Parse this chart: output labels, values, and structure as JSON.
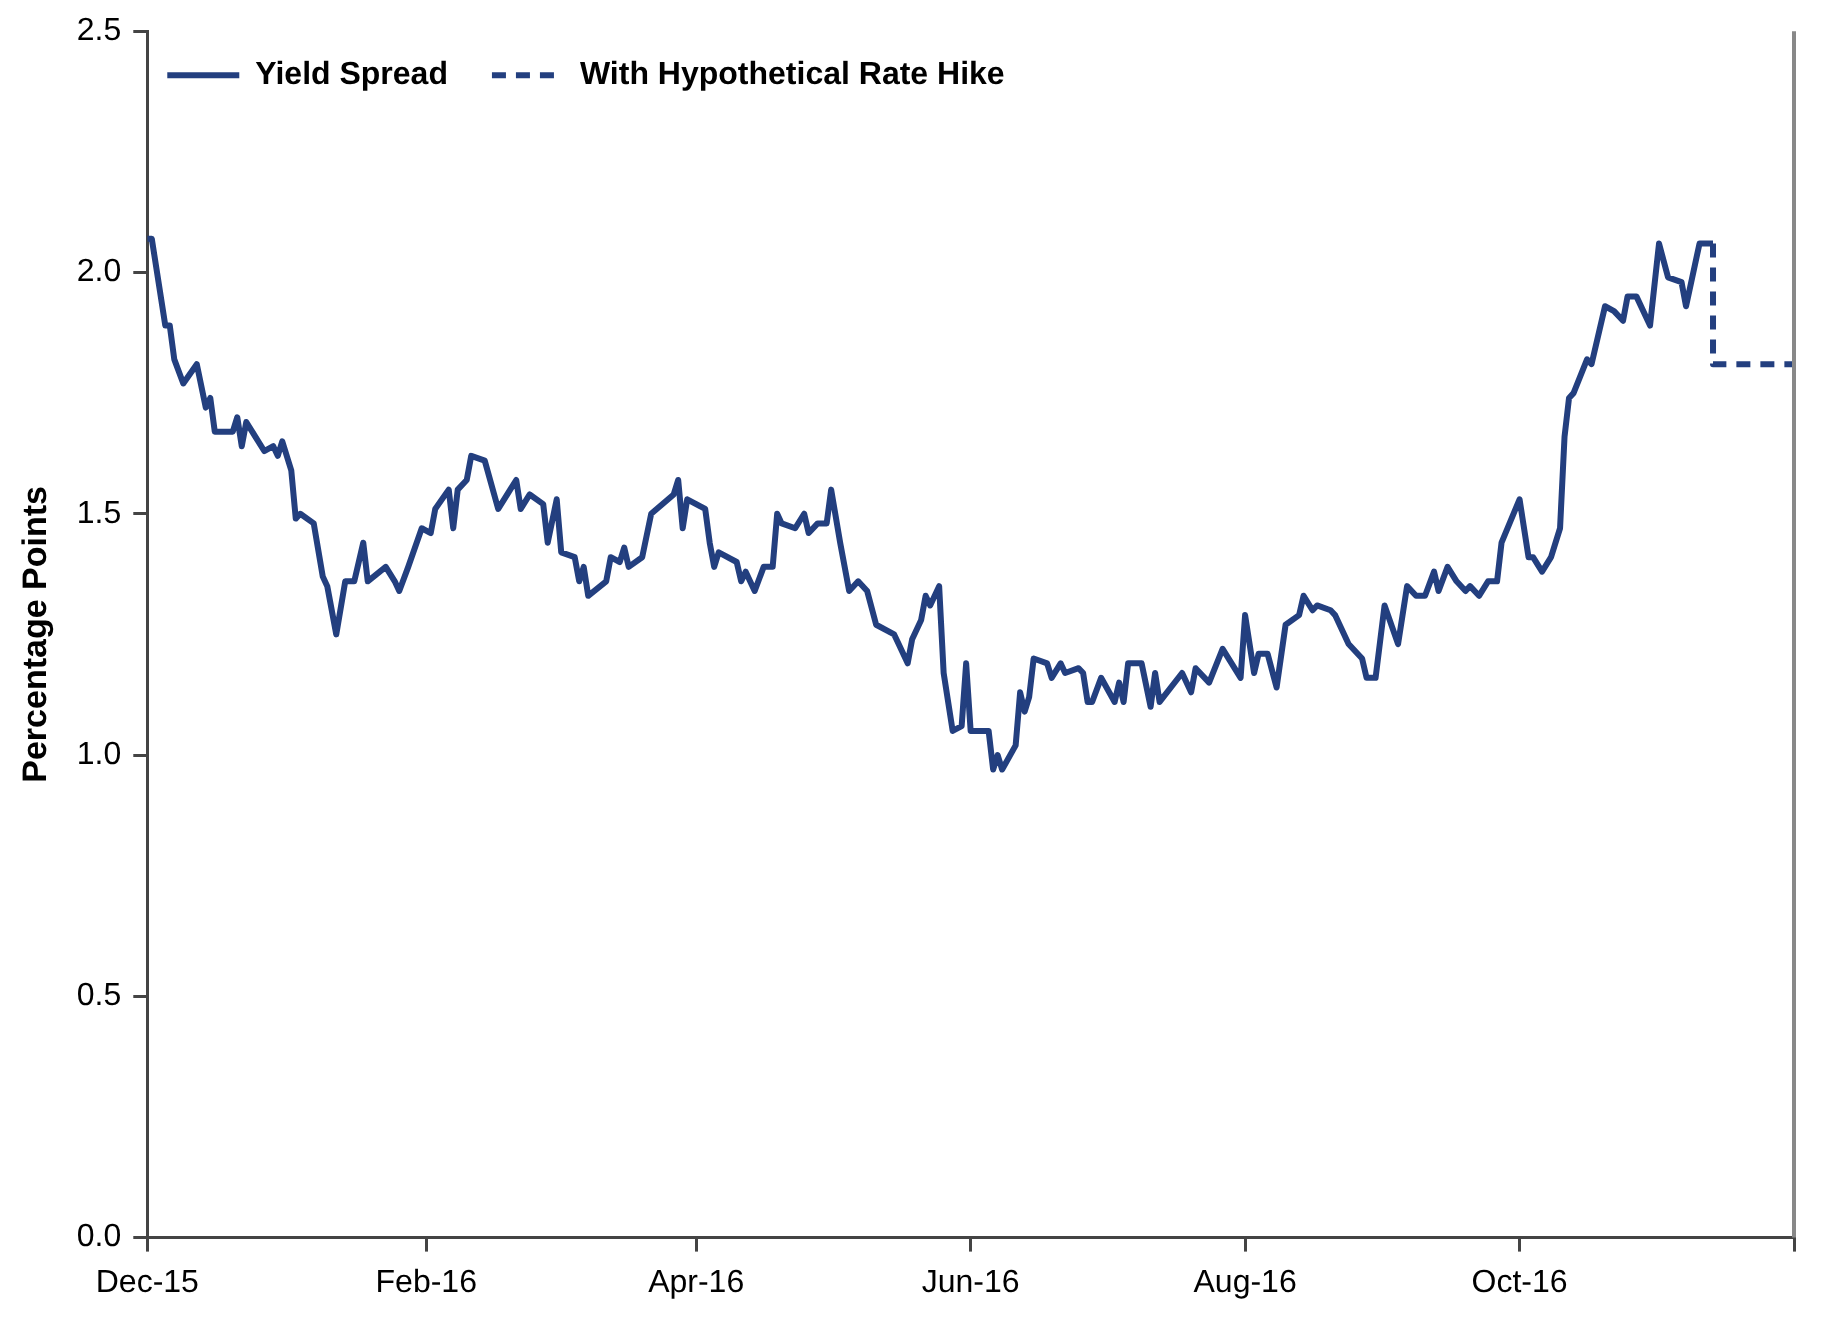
{
  "chart_data": {
    "type": "line",
    "ylabel": "Percentage Points",
    "legend": "top left",
    "grid": false,
    "marker": "none",
    "xlim": [
      "2015-12-01",
      "2016-12-01"
    ],
    "xticks": [
      {
        "value": "2015-12-01",
        "label": "Dec-15"
      },
      {
        "value": "2016-02-01",
        "label": "Feb-16"
      },
      {
        "value": "2016-04-01",
        "label": "Apr-16"
      },
      {
        "value": "2016-06-01",
        "label": "Jun-16"
      },
      {
        "value": "2016-08-01",
        "label": "Aug-16"
      },
      {
        "value": "2016-10-01",
        "label": "Oct-16"
      },
      {
        "value": "2016-12-01",
        "label": null
      }
    ],
    "ylim": [
      0,
      2.5
    ],
    "yticks": [
      {
        "value": 0,
        "label": "0.0"
      },
      {
        "value": 0.5,
        "label": "0.5"
      },
      {
        "value": 1,
        "label": "1.0"
      },
      {
        "value": 1.5,
        "label": "1.5"
      },
      {
        "value": 2,
        "label": "2.0"
      },
      {
        "value": 2.5,
        "label": "2.5"
      }
    ],
    "series": [
      {
        "name": "Yield Spread",
        "color": "#233f7f",
        "line_style": "solid",
        "x": [
          "2015-12-01",
          "2015-12-02",
          "2015-12-05",
          "2015-12-06",
          "2015-12-07",
          "2015-12-09",
          "2015-12-12",
          "2015-12-14",
          "2015-12-15",
          "2015-12-16",
          "2015-12-20",
          "2015-12-21",
          "2015-12-22",
          "2015-12-23",
          "2015-12-27",
          "2015-12-29",
          "2015-12-30",
          "2015-12-31",
          "2016-01-02",
          "2016-01-03",
          "2016-01-04",
          "2016-01-07",
          "2016-01-09",
          "2016-01-10",
          "2016-01-12",
          "2016-01-14",
          "2016-01-16",
          "2016-01-18",
          "2016-01-19",
          "2016-01-23",
          "2016-01-25",
          "2016-01-26",
          "2016-01-28",
          "2016-01-31",
          "2016-02-02",
          "2016-02-03",
          "2016-02-06",
          "2016-02-07",
          "2016-02-08",
          "2016-02-10",
          "2016-02-11",
          "2016-02-14",
          "2016-02-17",
          "2016-02-21",
          "2016-02-22",
          "2016-02-24",
          "2016-02-27",
          "2016-02-28",
          "2016-03-01",
          "2016-03-02",
          "2016-03-05",
          "2016-03-06",
          "2016-03-07",
          "2016-03-08",
          "2016-03-12",
          "2016-03-13",
          "2016-03-15",
          "2016-03-16",
          "2016-03-17",
          "2016-03-20",
          "2016-03-22",
          "2016-03-27",
          "2016-03-28",
          "2016-03-29",
          "2016-03-30",
          "2016-04-03",
          "2016-04-04",
          "2016-04-05",
          "2016-04-06",
          "2016-04-10",
          "2016-04-11",
          "2016-04-12",
          "2016-04-14",
          "2016-04-16",
          "2016-04-18",
          "2016-04-19",
          "2016-04-20",
          "2016-04-23",
          "2016-04-25",
          "2016-04-26",
          "2016-04-28",
          "2016-04-30",
          "2016-05-01",
          "2016-05-03",
          "2016-05-05",
          "2016-05-07",
          "2016-05-09",
          "2016-05-11",
          "2016-05-15",
          "2016-05-16",
          "2016-05-18",
          "2016-05-19",
          "2016-05-21",
          "2016-05-22",
          "2016-05-23",
          "2016-05-25",
          "2016-05-26",
          "2016-05-28",
          "2016-05-30",
          "2016-05-31",
          "2016-06-01",
          "2016-06-05",
          "2016-06-06",
          "2016-06-07",
          "2016-06-08",
          "2016-06-11",
          "2016-06-12",
          "2016-06-13",
          "2016-06-14",
          "2016-06-15",
          "2016-06-18",
          "2016-06-19",
          "2016-06-21",
          "2016-06-22",
          "2016-06-25",
          "2016-06-26",
          "2016-06-27",
          "2016-06-28",
          "2016-06-30",
          "2016-07-03",
          "2016-07-04",
          "2016-07-05",
          "2016-07-06",
          "2016-07-09",
          "2016-07-11",
          "2016-07-12",
          "2016-07-13",
          "2016-07-18",
          "2016-07-20",
          "2016-07-21",
          "2016-07-24",
          "2016-07-27",
          "2016-07-31",
          "2016-08-01",
          "2016-08-03",
          "2016-08-04",
          "2016-08-06",
          "2016-08-08",
          "2016-08-10",
          "2016-08-13",
          "2016-08-14",
          "2016-08-16",
          "2016-08-17",
          "2016-08-20",
          "2016-08-21",
          "2016-08-24",
          "2016-08-27",
          "2016-08-28",
          "2016-08-30",
          "2016-09-01",
          "2016-09-04",
          "2016-09-06",
          "2016-09-08",
          "2016-09-10",
          "2016-09-12",
          "2016-09-13",
          "2016-09-15",
          "2016-09-17",
          "2016-09-19",
          "2016-09-20",
          "2016-09-22",
          "2016-09-24",
          "2016-09-26",
          "2016-09-27",
          "2016-10-01",
          "2016-10-03",
          "2016-10-04",
          "2016-10-06",
          "2016-10-08",
          "2016-10-10",
          "2016-10-11",
          "2016-10-12",
          "2016-10-13",
          "2016-10-16",
          "2016-10-17",
          "2016-10-20",
          "2016-10-22",
          "2016-10-24",
          "2016-10-25",
          "2016-10-27",
          "2016-10-30",
          "2016-11-01",
          "2016-11-03",
          "2016-11-06",
          "2016-11-07",
          "2016-11-10",
          "2016-11-13"
        ],
        "values": [
          2.07,
          2.07,
          1.89,
          1.89,
          1.82,
          1.77,
          1.81,
          1.72,
          1.74,
          1.67,
          1.67,
          1.7,
          1.64,
          1.69,
          1.63,
          1.64,
          1.62,
          1.65,
          1.59,
          1.49,
          1.5,
          1.48,
          1.37,
          1.35,
          1.25,
          1.36,
          1.36,
          1.44,
          1.36,
          1.39,
          1.36,
          1.34,
          1.39,
          1.47,
          1.46,
          1.51,
          1.55,
          1.47,
          1.55,
          1.57,
          1.62,
          1.61,
          1.51,
          1.57,
          1.51,
          1.54,
          1.52,
          1.44,
          1.53,
          1.42,
          1.41,
          1.36,
          1.39,
          1.33,
          1.36,
          1.41,
          1.4,
          1.43,
          1.39,
          1.41,
          1.5,
          1.54,
          1.57,
          1.47,
          1.53,
          1.51,
          1.44,
          1.39,
          1.42,
          1.4,
          1.36,
          1.38,
          1.34,
          1.39,
          1.39,
          1.5,
          1.48,
          1.47,
          1.5,
          1.46,
          1.48,
          1.48,
          1.55,
          1.44,
          1.34,
          1.36,
          1.34,
          1.27,
          1.25,
          1.23,
          1.19,
          1.24,
          1.28,
          1.33,
          1.31,
          1.35,
          1.17,
          1.05,
          1.06,
          1.19,
          1.05,
          1.05,
          0.97,
          1.0,
          0.97,
          1.02,
          1.13,
          1.09,
          1.12,
          1.2,
          1.19,
          1.16,
          1.19,
          1.17,
          1.18,
          1.17,
          1.11,
          1.11,
          1.16,
          1.11,
          1.15,
          1.11,
          1.19,
          1.19,
          1.1,
          1.17,
          1.11,
          1.17,
          1.13,
          1.18,
          1.15,
          1.22,
          1.16,
          1.29,
          1.17,
          1.21,
          1.21,
          1.14,
          1.27,
          1.29,
          1.33,
          1.3,
          1.31,
          1.3,
          1.29,
          1.23,
          1.2,
          1.16,
          1.16,
          1.31,
          1.23,
          1.35,
          1.33,
          1.33,
          1.38,
          1.34,
          1.39,
          1.36,
          1.34,
          1.35,
          1.33,
          1.36,
          1.36,
          1.44,
          1.53,
          1.41,
          1.41,
          1.38,
          1.41,
          1.47,
          1.66,
          1.74,
          1.75,
          1.82,
          1.81,
          1.93,
          1.92,
          1.9,
          1.95,
          1.95,
          1.89,
          2.06,
          1.99,
          1.98,
          1.93,
          2.06,
          2.06
        ]
      },
      {
        "name": "With Hypothetical Rate Hike",
        "color": "#233f7f",
        "line_style": "dashed",
        "x": [
          "2016-11-13",
          "2016-11-13",
          "2016-12-01"
        ],
        "values": [
          2.06,
          1.81,
          1.81
        ]
      }
    ]
  }
}
